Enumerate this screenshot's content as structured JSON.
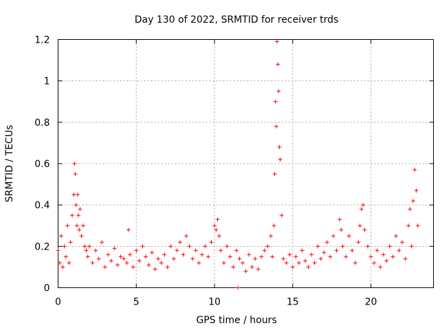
{
  "chart_data": {
    "type": "scatter",
    "title": "Day 130 of 2022, SRMTID for receiver trds",
    "xlabel": "GPS time / hours",
    "ylabel": "SRMTID / TECUs",
    "xlim": [
      0,
      24
    ],
    "ylim": [
      0,
      1.2
    ],
    "xticks": [
      0,
      5,
      10,
      15,
      20
    ],
    "xtick_labels": [
      "0",
      "5",
      "10",
      "15",
      "20"
    ],
    "yticks": [
      0,
      0.2,
      0.4,
      0.6,
      0.8,
      1.0,
      1.2
    ],
    "ytick_labels": [
      "0",
      "0.2",
      "0.4",
      "0.6",
      "0.8",
      "1",
      "1.2"
    ],
    "grid": true,
    "marker": "+",
    "color": "#ff0000",
    "series": [
      {
        "name": "SRMTID",
        "x": [
          0.0,
          0.1,
          0.2,
          0.3,
          0.4,
          0.5,
          0.6,
          0.7,
          0.8,
          0.9,
          1.0,
          1.05,
          1.1,
          1.15,
          1.2,
          1.25,
          1.3,
          1.35,
          1.4,
          1.5,
          1.6,
          1.7,
          1.8,
          1.9,
          2.0,
          2.2,
          2.4,
          2.6,
          2.8,
          3.0,
          3.2,
          3.4,
          3.6,
          3.8,
          4.0,
          4.2,
          4.4,
          4.5,
          4.6,
          4.8,
          5.0,
          5.2,
          5.4,
          5.6,
          5.8,
          6.0,
          6.2,
          6.4,
          6.6,
          6.8,
          7.0,
          7.2,
          7.4,
          7.6,
          7.8,
          8.0,
          8.2,
          8.4,
          8.6,
          8.8,
          9.0,
          9.2,
          9.4,
          9.6,
          9.8,
          10.0,
          10.1,
          10.2,
          10.3,
          10.4,
          10.6,
          10.8,
          11.0,
          11.2,
          11.4,
          11.5,
          11.6,
          11.8,
          12.0,
          12.2,
          12.4,
          12.6,
          12.8,
          13.0,
          13.2,
          13.4,
          13.6,
          13.7,
          13.8,
          13.85,
          13.9,
          13.95,
          14.0,
          14.05,
          14.1,
          14.15,
          14.2,
          14.3,
          14.4,
          14.6,
          14.8,
          15.0,
          15.2,
          15.4,
          15.6,
          15.8,
          16.0,
          16.2,
          16.4,
          16.6,
          16.8,
          17.0,
          17.2,
          17.4,
          17.6,
          17.8,
          18.0,
          18.1,
          18.2,
          18.4,
          18.6,
          18.8,
          19.0,
          19.2,
          19.3,
          19.4,
          19.5,
          19.6,
          19.8,
          20.0,
          20.2,
          20.4,
          20.6,
          20.8,
          21.0,
          21.2,
          21.4,
          21.6,
          21.8,
          22.0,
          22.2,
          22.4,
          22.5,
          22.6,
          22.7,
          22.8,
          22.9,
          23.0
        ],
        "y": [
          0.18,
          0.12,
          0.25,
          0.1,
          0.2,
          0.15,
          0.3,
          0.12,
          0.22,
          0.35,
          0.45,
          0.6,
          0.55,
          0.4,
          0.3,
          0.45,
          0.35,
          0.28,
          0.38,
          0.25,
          0.3,
          0.2,
          0.18,
          0.15,
          0.2,
          0.12,
          0.18,
          0.14,
          0.22,
          0.1,
          0.16,
          0.13,
          0.19,
          0.11,
          0.15,
          0.14,
          0.12,
          0.28,
          0.16,
          0.1,
          0.18,
          0.13,
          0.2,
          0.15,
          0.11,
          0.17,
          0.09,
          0.14,
          0.12,
          0.16,
          0.1,
          0.2,
          0.14,
          0.18,
          0.22,
          0.16,
          0.25,
          0.2,
          0.14,
          0.18,
          0.12,
          0.16,
          0.2,
          0.15,
          0.22,
          0.3,
          0.28,
          0.33,
          0.25,
          0.18,
          0.12,
          0.2,
          0.15,
          0.1,
          0.18,
          0.0,
          0.14,
          0.12,
          0.08,
          0.16,
          0.1,
          0.14,
          0.09,
          0.15,
          0.18,
          0.2,
          0.25,
          0.15,
          0.3,
          0.55,
          0.9,
          0.78,
          1.19,
          1.08,
          0.95,
          0.68,
          0.62,
          0.35,
          0.14,
          0.12,
          0.16,
          0.1,
          0.15,
          0.12,
          0.18,
          0.13,
          0.1,
          0.16,
          0.12,
          0.2,
          0.14,
          0.17,
          0.22,
          0.15,
          0.25,
          0.18,
          0.33,
          0.28,
          0.2,
          0.15,
          0.25,
          0.18,
          0.12,
          0.22,
          0.3,
          0.38,
          0.4,
          0.28,
          0.2,
          0.15,
          0.12,
          0.18,
          0.1,
          0.16,
          0.13,
          0.2,
          0.15,
          0.25,
          0.18,
          0.22,
          0.14,
          0.3,
          0.38,
          0.2,
          0.42,
          0.57,
          0.47,
          0.3
        ]
      }
    ]
  }
}
